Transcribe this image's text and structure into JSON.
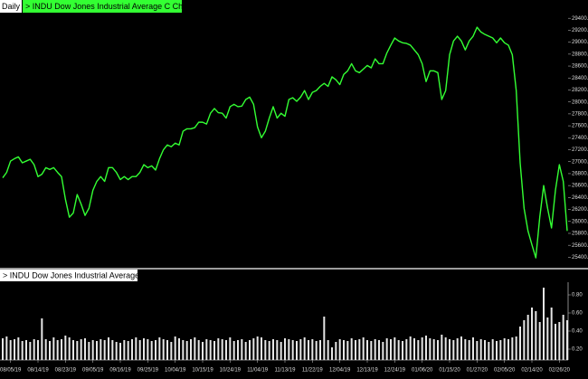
{
  "header": {
    "period": "Daily",
    "price_label": "> INDU  Dow Jones Industrial Average  C  Chg",
    "volume_label": "> INDU  Dow Jones Industrial Average  V"
  },
  "chart_data": [
    {
      "type": "line",
      "color": "#33ff33",
      "values": [
        26730,
        26820,
        27010,
        27050,
        27080,
        26980,
        27010,
        27040,
        26950,
        26750,
        26790,
        26900,
        26870,
        26900,
        26820,
        26750,
        26370,
        26070,
        26140,
        26450,
        26290,
        26100,
        26220,
        26520,
        26670,
        26750,
        26670,
        26900,
        26900,
        26820,
        26700,
        26750,
        26700,
        26750,
        26750,
        26820,
        26950,
        26900,
        26930,
        26860,
        27050,
        27200,
        27280,
        27250,
        27310,
        27280,
        27510,
        27550,
        27550,
        27570,
        27660,
        27660,
        27630,
        27810,
        27890,
        27820,
        27810,
        27730,
        27920,
        27960,
        27920,
        27930,
        28040,
        28080,
        27960,
        27580,
        27400,
        27510,
        27730,
        27920,
        27730,
        27810,
        27760,
        28040,
        28070,
        28010,
        28080,
        28190,
        28040,
        28160,
        28190,
        28260,
        28310,
        28260,
        28420,
        28370,
        28290,
        28460,
        28520,
        28640,
        28520,
        28490,
        28550,
        28610,
        28570,
        28720,
        28640,
        28640,
        28820,
        28950,
        29070,
        29020,
        28990,
        28980,
        28950,
        28870,
        28790,
        28640,
        28340,
        28520,
        28520,
        28490,
        28040,
        28190,
        28790,
        29020,
        29100,
        29020,
        28870,
        29020,
        29100,
        29250,
        29170,
        29130,
        29100,
        29070,
        28990,
        29070,
        28990,
        28950,
        28790,
        28190,
        26980,
        26220,
        25840,
        25610,
        25390,
        26070,
        26600,
        26220,
        25890,
        26520,
        26950,
        26670,
        25840
      ],
      "ylim": [
        25300,
        29600
      ],
      "yticks": [
        {
          "value": 25400,
          "label": "25400.00"
        },
        {
          "value": 25600,
          "label": "25600.00"
        },
        {
          "value": 25800,
          "label": "25800.00"
        },
        {
          "value": 26000,
          "label": "26000.00"
        },
        {
          "value": 26200,
          "label": "26200.00"
        },
        {
          "value": 26400,
          "label": "26400.00"
        },
        {
          "value": 26600,
          "label": "26600.00"
        },
        {
          "value": 26800,
          "label": "26800.00"
        },
        {
          "value": 27000,
          "label": "27000.00"
        },
        {
          "value": 27200,
          "label": "27200.00"
        },
        {
          "value": 27400,
          "label": "27400.00"
        },
        {
          "value": 27600,
          "label": "27600.00"
        },
        {
          "value": 27800,
          "label": "27800.00"
        },
        {
          "value": 28000,
          "label": "28000.00"
        },
        {
          "value": 28200,
          "label": "28200.00"
        },
        {
          "value": 28400,
          "label": "28400.00"
        },
        {
          "value": 28600,
          "label": "28600.00"
        },
        {
          "value": 28800,
          "label": "28800.00"
        },
        {
          "value": 29000,
          "label": "29000.00"
        },
        {
          "value": 29200,
          "label": "29200.00"
        },
        {
          "value": 29400,
          "label": "29400.00"
        }
      ]
    },
    {
      "type": "bar",
      "color": "#e6e6e6",
      "values": [
        0.32,
        0.34,
        0.3,
        0.31,
        0.33,
        0.29,
        0.3,
        0.28,
        0.31,
        0.3,
        0.54,
        0.31,
        0.29,
        0.33,
        0.3,
        0.31,
        0.35,
        0.33,
        0.3,
        0.29,
        0.31,
        0.32,
        0.28,
        0.3,
        0.29,
        0.31,
        0.3,
        0.33,
        0.3,
        0.28,
        0.27,
        0.3,
        0.29,
        0.31,
        0.33,
        0.3,
        0.32,
        0.31,
        0.29,
        0.3,
        0.33,
        0.31,
        0.3,
        0.28,
        0.34,
        0.32,
        0.3,
        0.29,
        0.31,
        0.33,
        0.3,
        0.28,
        0.31,
        0.3,
        0.29,
        0.32,
        0.31,
        0.3,
        0.33,
        0.29,
        0.3,
        0.31,
        0.28,
        0.3,
        0.32,
        0.34,
        0.33,
        0.3,
        0.29,
        0.31,
        0.3,
        0.28,
        0.32,
        0.31,
        0.3,
        0.29,
        0.31,
        0.33,
        0.3,
        0.31,
        0.29,
        0.3,
        0.56,
        0.3,
        0.22,
        0.28,
        0.31,
        0.3,
        0.29,
        0.32,
        0.3,
        0.31,
        0.33,
        0.3,
        0.29,
        0.31,
        0.3,
        0.28,
        0.32,
        0.31,
        0.33,
        0.3,
        0.29,
        0.31,
        0.34,
        0.32,
        0.3,
        0.33,
        0.35,
        0.32,
        0.31,
        0.3,
        0.36,
        0.33,
        0.31,
        0.3,
        0.32,
        0.34,
        0.31,
        0.3,
        0.33,
        0.29,
        0.31,
        0.3,
        0.28,
        0.31,
        0.29,
        0.3,
        0.32,
        0.31,
        0.33,
        0.34,
        0.45,
        0.52,
        0.58,
        0.66,
        0.62,
        0.5,
        0.88,
        0.55,
        0.66,
        0.48,
        0.5,
        0.58,
        0.52
      ],
      "ylim": [
        0.08,
        1.06
      ],
      "yticks": [
        {
          "value": 0.2,
          "label": "0.20"
        },
        {
          "value": 0.4,
          "label": "0.40"
        },
        {
          "value": 0.6,
          "label": "0.60"
        },
        {
          "value": 0.8,
          "label": "0.80"
        }
      ],
      "xticks": [
        {
          "value": 2,
          "label": "08/05/19"
        },
        {
          "value": 9,
          "label": "08/14/19"
        },
        {
          "value": 16,
          "label": "08/23/19"
        },
        {
          "value": 23,
          "label": "09/05/19"
        },
        {
          "value": 30,
          "label": "09/16/19"
        },
        {
          "value": 37,
          "label": "09/25/19"
        },
        {
          "value": 44,
          "label": "10/04/19"
        },
        {
          "value": 51,
          "label": "10/15/19"
        },
        {
          "value": 58,
          "label": "10/24/19"
        },
        {
          "value": 65,
          "label": "11/04/19"
        },
        {
          "value": 72,
          "label": "11/13/19"
        },
        {
          "value": 79,
          "label": "11/22/19"
        },
        {
          "value": 86,
          "label": "12/04/19"
        },
        {
          "value": 93,
          "label": "12/13/19"
        },
        {
          "value": 100,
          "label": "12/24/19"
        },
        {
          "value": 107,
          "label": "01/06/20"
        },
        {
          "value": 114,
          "label": "01/15/20"
        },
        {
          "value": 121,
          "label": "01/27/20"
        },
        {
          "value": 128,
          "label": "02/05/20"
        },
        {
          "value": 135,
          "label": "02/14/20"
        },
        {
          "value": 142,
          "label": "02/26/20"
        }
      ]
    }
  ]
}
